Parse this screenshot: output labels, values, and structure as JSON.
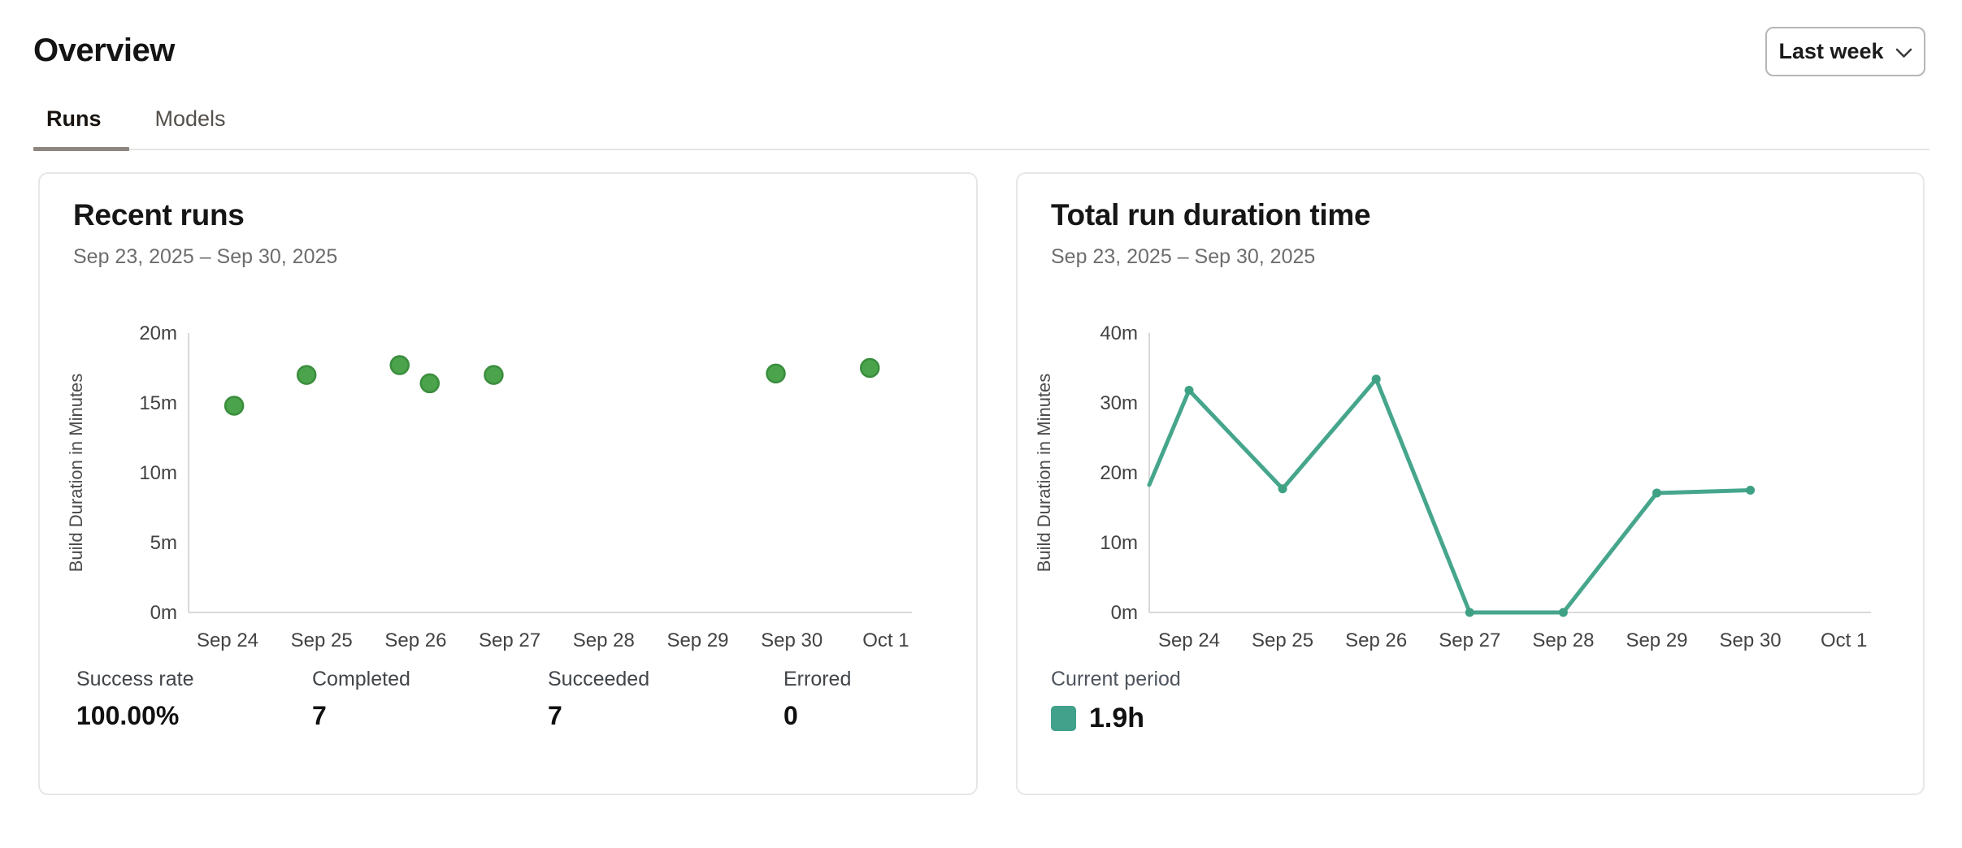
{
  "page": {
    "title": "Overview"
  },
  "period_select": {
    "value": "Last week"
  },
  "tabs": [
    {
      "label": "Runs",
      "active": true
    },
    {
      "label": "Models",
      "active": false
    }
  ],
  "cards": {
    "recent_runs": {
      "title": "Recent runs",
      "date_range": "Sep 23, 2025 – Sep 30, 2025",
      "stats": [
        {
          "label": "Success rate",
          "value": "100.00%"
        },
        {
          "label": "Completed",
          "value": "7"
        },
        {
          "label": "Succeeded",
          "value": "7"
        },
        {
          "label": "Errored",
          "value": "0"
        }
      ]
    },
    "total_run_duration": {
      "title": "Total run duration time",
      "date_range": "Sep 23, 2025 – Sep 30, 2025",
      "legend": {
        "label": "Current period",
        "value": "1.9h",
        "color": "#41a18a"
      }
    }
  },
  "chart_data": [
    {
      "type": "scatter",
      "title": "Recent runs",
      "ylabel": "Build Duration in Minutes",
      "x_ticks": [
        "Sep 24",
        "Sep 25",
        "Sep 26",
        "Sep 27",
        "Sep 28",
        "Sep 29",
        "Sep 30",
        "Oct 1"
      ],
      "y_ticks": [
        "0m",
        "5m",
        "10m",
        "15m",
        "20m"
      ],
      "ylim": [
        0,
        20
      ],
      "x_domain_note": "day offset 0 = Sep 23, 1 = Sep 24 ... 8 = Oct 1",
      "points": [
        {
          "day_offset": 1.07,
          "minutes": 14.8
        },
        {
          "day_offset": 1.84,
          "minutes": 17.0
        },
        {
          "day_offset": 2.83,
          "minutes": 17.7
        },
        {
          "day_offset": 3.15,
          "minutes": 16.4
        },
        {
          "day_offset": 3.83,
          "minutes": 17.0
        },
        {
          "day_offset": 6.83,
          "minutes": 17.1
        },
        {
          "day_offset": 7.83,
          "minutes": 17.5
        }
      ],
      "point_fill": "#4ba34c",
      "point_stroke": "#3b8d3e",
      "grid": false,
      "axis_color": "#d9d9d9",
      "tick_label_color": "#434343"
    },
    {
      "type": "line",
      "title": "Total run duration time",
      "ylabel": "Build Duration in Minutes",
      "x_ticks": [
        "Sep 24",
        "Sep 25",
        "Sep 26",
        "Sep 27",
        "Sep 28",
        "Sep 29",
        "Sep 30",
        "Oct 1"
      ],
      "y_ticks": [
        "0m",
        "10m",
        "20m",
        "30m",
        "40m"
      ],
      "ylim": [
        0,
        40
      ],
      "series": [
        {
          "name": "Current period",
          "points": [
            {
              "date": "Sep 23",
              "minutes": 0
            },
            {
              "date": "Sep 24",
              "minutes": 31.8
            },
            {
              "date": "Sep 25",
              "minutes": 17.7
            },
            {
              "date": "Sep 26",
              "minutes": 33.4
            },
            {
              "date": "Sep 27",
              "minutes": 0
            },
            {
              "date": "Sep 28",
              "minutes": 0
            },
            {
              "date": "Sep 29",
              "minutes": 17.1
            },
            {
              "date": "Sep 30",
              "minutes": 17.5
            }
          ],
          "total": "1.9h"
        }
      ],
      "line_color": "#46a68c",
      "marker_color": "#3fa184",
      "clip_start_day_offset": 0.574,
      "grid": false,
      "axis_color": "#d9d9d9",
      "tick_label_color": "#434343"
    }
  ]
}
